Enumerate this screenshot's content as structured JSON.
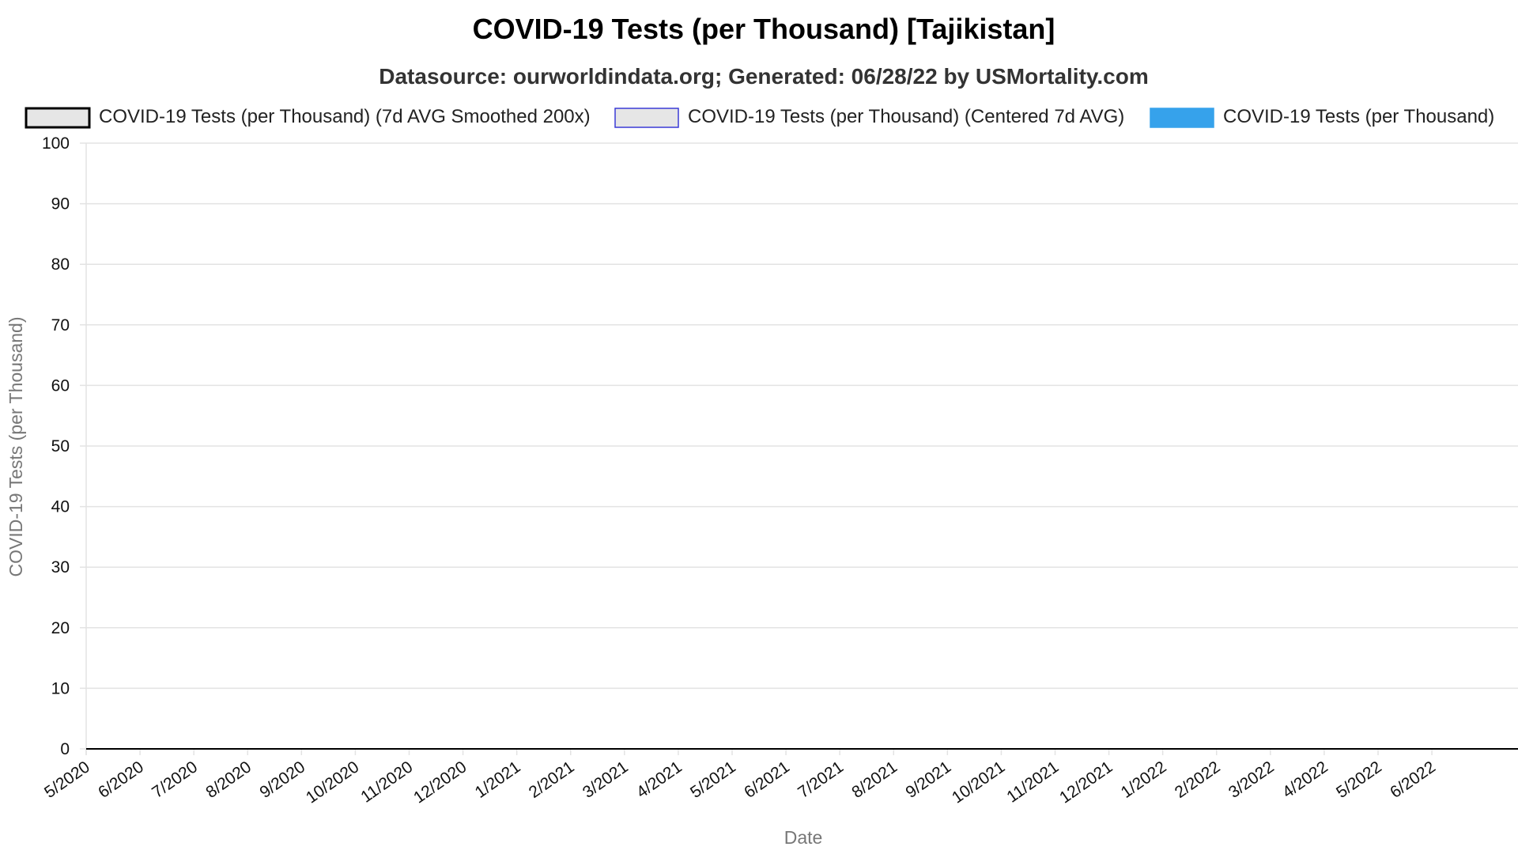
{
  "chart_data": {
    "type": "line",
    "title": "COVID-19 Tests (per Thousand) [Tajikistan]",
    "subtitle": "Datasource: ourworldindata.org; Generated: 06/28/22 by USMortality.com",
    "xlabel": "Date",
    "ylabel": "COVID-19 Tests (per Thousand)",
    "ylim": [
      0,
      100
    ],
    "yticks": [
      0,
      10,
      20,
      30,
      40,
      50,
      60,
      70,
      80,
      90,
      100
    ],
    "xticks": [
      "5/2020",
      "6/2020",
      "7/2020",
      "8/2020",
      "9/2020",
      "10/2020",
      "11/2020",
      "12/2020",
      "1/2021",
      "2/2021",
      "3/2021",
      "4/2021",
      "5/2021",
      "6/2021",
      "7/2021",
      "8/2021",
      "9/2021",
      "10/2021",
      "11/2021",
      "12/2021",
      "1/2022",
      "2/2022",
      "3/2022",
      "4/2022",
      "5/2022",
      "6/2022"
    ],
    "grid": true,
    "legend_position": "top",
    "series": [
      {
        "name": "COVID-19 Tests (per Thousand) (7d AVG Smoothed 200x)",
        "fill": "#e6e6e6",
        "stroke": "#000000",
        "x": [
          "5/2020",
          "6/2022"
        ],
        "values": [
          0,
          0
        ]
      },
      {
        "name": "COVID-19 Tests (per Thousand) (Centered 7d AVG)",
        "fill": "#e6e6e6",
        "stroke": "#3a3ad6",
        "x": [
          "5/2020",
          "6/2022"
        ],
        "values": [
          0,
          0
        ]
      },
      {
        "name": "COVID-19 Tests (per Thousand)",
        "fill": "#36a2eb",
        "stroke": "#36a2eb",
        "x": [
          "5/2020",
          "6/2022"
        ],
        "values": [
          0,
          0
        ]
      }
    ]
  }
}
